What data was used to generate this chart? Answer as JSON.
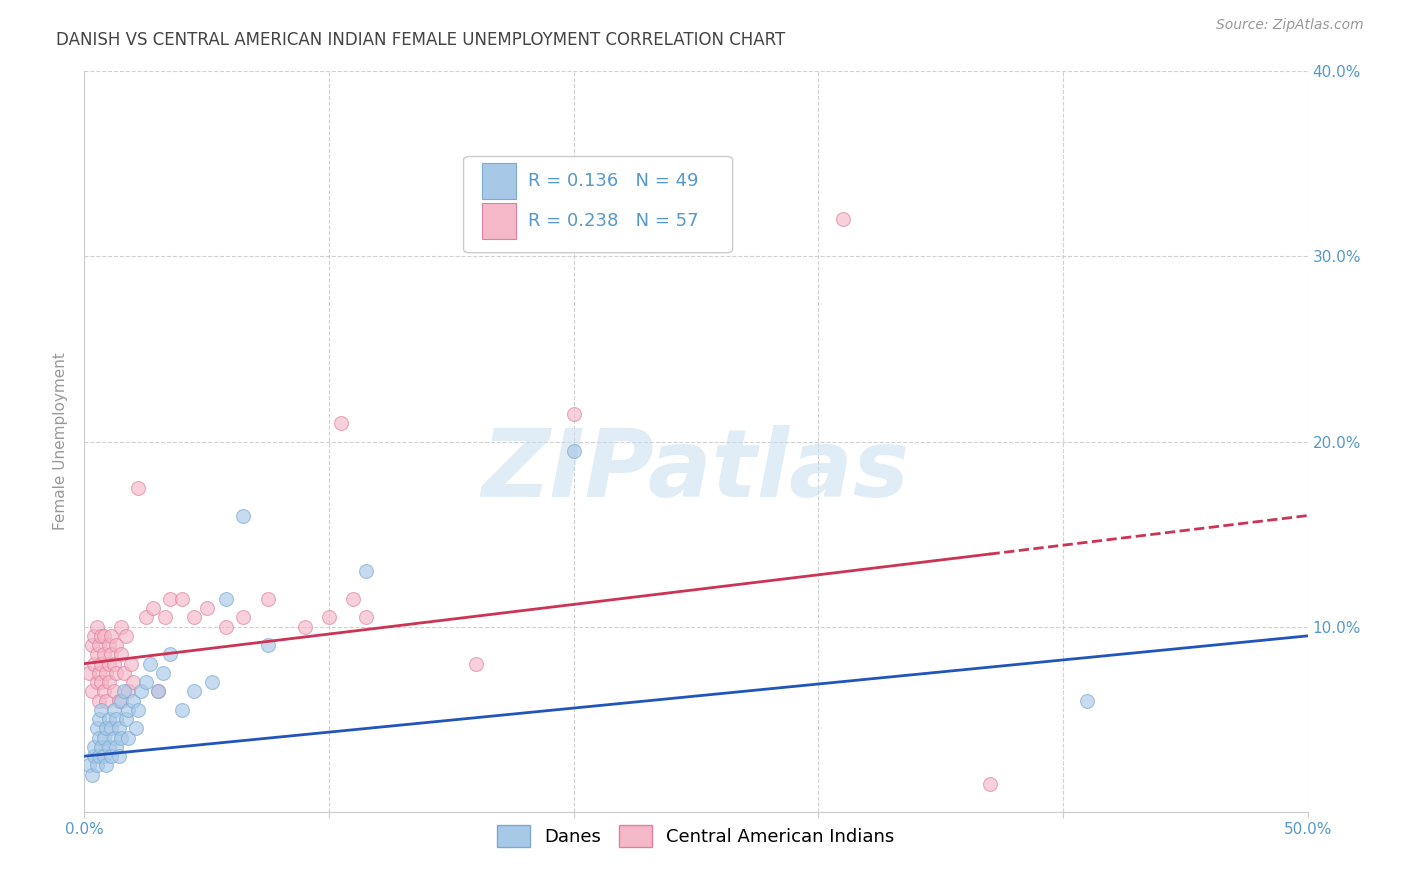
{
  "title": "DANISH VS CENTRAL AMERICAN INDIAN FEMALE UNEMPLOYMENT CORRELATION CHART",
  "source": "Source: ZipAtlas.com",
  "ylabel": "Female Unemployment",
  "watermark": "ZIPatlas",
  "x_min": 0.0,
  "x_max": 0.5,
  "y_min": 0.0,
  "y_max": 0.4,
  "x_ticks": [
    0.0,
    0.1,
    0.2,
    0.3,
    0.4,
    0.5
  ],
  "x_tick_labels": [
    "0.0%",
    "",
    "",
    "",
    "",
    "50.0%"
  ],
  "y_ticks": [
    0.0,
    0.1,
    0.2,
    0.3,
    0.4
  ],
  "y_tick_labels_right": [
    "",
    "10.0%",
    "20.0%",
    "30.0%",
    "40.0%"
  ],
  "danes_color": "#a8c8e8",
  "danes_edge_color": "#7aaad0",
  "central_color": "#f5b8c8",
  "central_edge_color": "#e080a0",
  "danes_R": 0.136,
  "danes_N": 49,
  "central_R": 0.238,
  "central_N": 57,
  "danes_line_color": "#2255bb",
  "central_line_color": "#cc3355",
  "danes_line_start_y": 0.03,
  "danes_line_end_y": 0.095,
  "central_line_start_y": 0.08,
  "central_line_end_y": 0.16,
  "danes_scatter_x": [
    0.002,
    0.003,
    0.004,
    0.004,
    0.005,
    0.005,
    0.006,
    0.006,
    0.006,
    0.007,
    0.007,
    0.008,
    0.008,
    0.009,
    0.009,
    0.01,
    0.01,
    0.011,
    0.011,
    0.012,
    0.012,
    0.013,
    0.013,
    0.014,
    0.014,
    0.015,
    0.015,
    0.016,
    0.017,
    0.018,
    0.018,
    0.02,
    0.021,
    0.022,
    0.023,
    0.025,
    0.027,
    0.03,
    0.032,
    0.035,
    0.04,
    0.045,
    0.052,
    0.058,
    0.065,
    0.075,
    0.115,
    0.2,
    0.41
  ],
  "danes_scatter_y": [
    0.025,
    0.02,
    0.03,
    0.035,
    0.045,
    0.025,
    0.04,
    0.03,
    0.05,
    0.035,
    0.055,
    0.04,
    0.03,
    0.045,
    0.025,
    0.05,
    0.035,
    0.045,
    0.03,
    0.055,
    0.04,
    0.035,
    0.05,
    0.045,
    0.03,
    0.06,
    0.04,
    0.065,
    0.05,
    0.04,
    0.055,
    0.06,
    0.045,
    0.055,
    0.065,
    0.07,
    0.08,
    0.065,
    0.075,
    0.085,
    0.055,
    0.065,
    0.07,
    0.115,
    0.16,
    0.09,
    0.13,
    0.195,
    0.06
  ],
  "central_scatter_x": [
    0.002,
    0.003,
    0.003,
    0.004,
    0.004,
    0.005,
    0.005,
    0.005,
    0.006,
    0.006,
    0.006,
    0.007,
    0.007,
    0.007,
    0.008,
    0.008,
    0.008,
    0.009,
    0.009,
    0.01,
    0.01,
    0.01,
    0.011,
    0.011,
    0.012,
    0.012,
    0.013,
    0.013,
    0.014,
    0.015,
    0.015,
    0.016,
    0.017,
    0.018,
    0.019,
    0.02,
    0.022,
    0.025,
    0.028,
    0.03,
    0.033,
    0.035,
    0.04,
    0.045,
    0.05,
    0.058,
    0.065,
    0.075,
    0.09,
    0.1,
    0.105,
    0.11,
    0.115,
    0.16,
    0.2,
    0.31,
    0.37
  ],
  "central_scatter_y": [
    0.075,
    0.065,
    0.09,
    0.08,
    0.095,
    0.07,
    0.085,
    0.1,
    0.075,
    0.09,
    0.06,
    0.08,
    0.095,
    0.07,
    0.085,
    0.065,
    0.095,
    0.075,
    0.06,
    0.08,
    0.09,
    0.07,
    0.085,
    0.095,
    0.065,
    0.08,
    0.075,
    0.09,
    0.06,
    0.085,
    0.1,
    0.075,
    0.095,
    0.065,
    0.08,
    0.07,
    0.175,
    0.105,
    0.11,
    0.065,
    0.105,
    0.115,
    0.115,
    0.105,
    0.11,
    0.1,
    0.105,
    0.115,
    0.1,
    0.105,
    0.21,
    0.115,
    0.105,
    0.08,
    0.215,
    0.32,
    0.015
  ],
  "background_color": "#ffffff",
  "grid_color": "#cccccc",
  "title_color": "#444444",
  "axis_color": "#5599cc",
  "marker_size": 100,
  "marker_alpha": 0.65,
  "title_fontsize": 12,
  "label_fontsize": 11,
  "tick_fontsize": 11,
  "legend_fontsize": 13
}
